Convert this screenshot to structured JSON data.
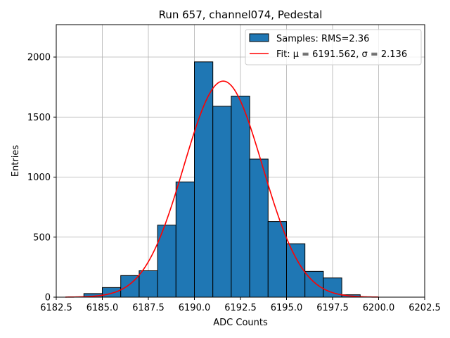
{
  "chart_data": {
    "type": "bar",
    "subtype": "histogram",
    "title": "Run 657, channel074, Pedestal",
    "xlabel": "ADC Counts",
    "ylabel": "Entries",
    "xlim": [
      6182.5,
      6202.5
    ],
    "ylim": [
      0,
      2270
    ],
    "grid": true,
    "x_ticks": [
      6182.5,
      6185.0,
      6187.5,
      6190.0,
      6192.5,
      6195.0,
      6197.5,
      6200.0,
      6202.5
    ],
    "x_tick_labels": [
      "6182.5",
      "6185.0",
      "6187.5",
      "6190.0",
      "6192.5",
      "6195.0",
      "6197.5",
      "6200.0",
      "6202.5"
    ],
    "y_ticks": [
      0,
      500,
      1000,
      1500,
      2000
    ],
    "y_tick_labels": [
      "0",
      "500",
      "1000",
      "1500",
      "2000"
    ],
    "bins": [
      {
        "start": 6184,
        "end": 6185,
        "value": 30
      },
      {
        "start": 6185,
        "end": 6186,
        "value": 80
      },
      {
        "start": 6186,
        "end": 6187,
        "value": 180
      },
      {
        "start": 6187,
        "end": 6188,
        "value": 220
      },
      {
        "start": 6188,
        "end": 6189,
        "value": 600
      },
      {
        "start": 6189,
        "end": 6190,
        "value": 960
      },
      {
        "start": 6190,
        "end": 6191,
        "value": 1960
      },
      {
        "start": 6191,
        "end": 6192,
        "value": 1590
      },
      {
        "start": 6192,
        "end": 6193,
        "value": 1675
      },
      {
        "start": 6193,
        "end": 6194,
        "value": 1150
      },
      {
        "start": 6194,
        "end": 6195,
        "value": 630
      },
      {
        "start": 6195,
        "end": 6196,
        "value": 445
      },
      {
        "start": 6196,
        "end": 6197,
        "value": 215
      },
      {
        "start": 6197,
        "end": 6198,
        "value": 160
      },
      {
        "start": 6198,
        "end": 6199,
        "value": 20
      }
    ],
    "fit": {
      "mu": 6191.562,
      "sigma": 2.136,
      "amplitude": 1800,
      "x_range": [
        6183,
        6200
      ]
    },
    "legend": {
      "position": "top-right",
      "entries": [
        {
          "label": "Samples: RMS=2.36",
          "kind": "patch",
          "color": "#1f77b4"
        },
        {
          "label": "Fit: μ = 6191.562, σ = 2.136",
          "kind": "line",
          "color": "#ff0000"
        }
      ]
    },
    "colors": {
      "bar_fill": "#1f77b4",
      "bar_edge": "#000000",
      "fit_line": "#ff0000",
      "grid": "#b0b0b0"
    }
  }
}
